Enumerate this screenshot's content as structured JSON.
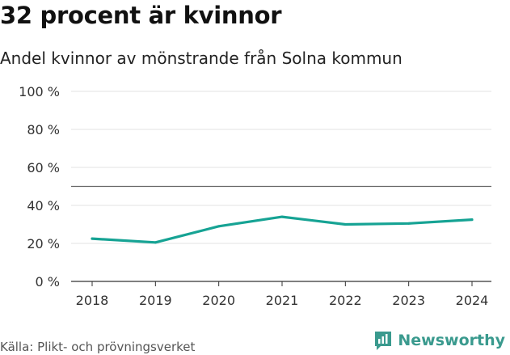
{
  "header": {
    "title": "32 procent är kvinnor",
    "subtitle": "Andel kvinnor av mönstrande från Solna kommun"
  },
  "footer": {
    "source": "Källa: Plikt- och prövningsverket",
    "brand": "Newsworthy",
    "brand_color": "#3a9a8e"
  },
  "chart_data": {
    "type": "line",
    "title": "32 procent är kvinnor",
    "subtitle": "Andel kvinnor av mönstrande från Solna kommun",
    "xlabel": "",
    "ylabel": "",
    "x": [
      "2018",
      "2019",
      "2020",
      "2021",
      "2022",
      "2023",
      "2024"
    ],
    "series": [
      {
        "name": "Andel kvinnor",
        "color": "#16a394",
        "values": [
          22.5,
          20.5,
          29,
          34,
          30,
          30.5,
          32.5
        ]
      }
    ],
    "ylim": [
      0,
      100
    ],
    "yticks": [
      0,
      20,
      40,
      60,
      80,
      100
    ],
    "ytick_labels": [
      "0 %",
      "20 %",
      "40 %",
      "60 %",
      "80 %",
      "100 %"
    ],
    "reference_line": 50,
    "grid": true
  }
}
